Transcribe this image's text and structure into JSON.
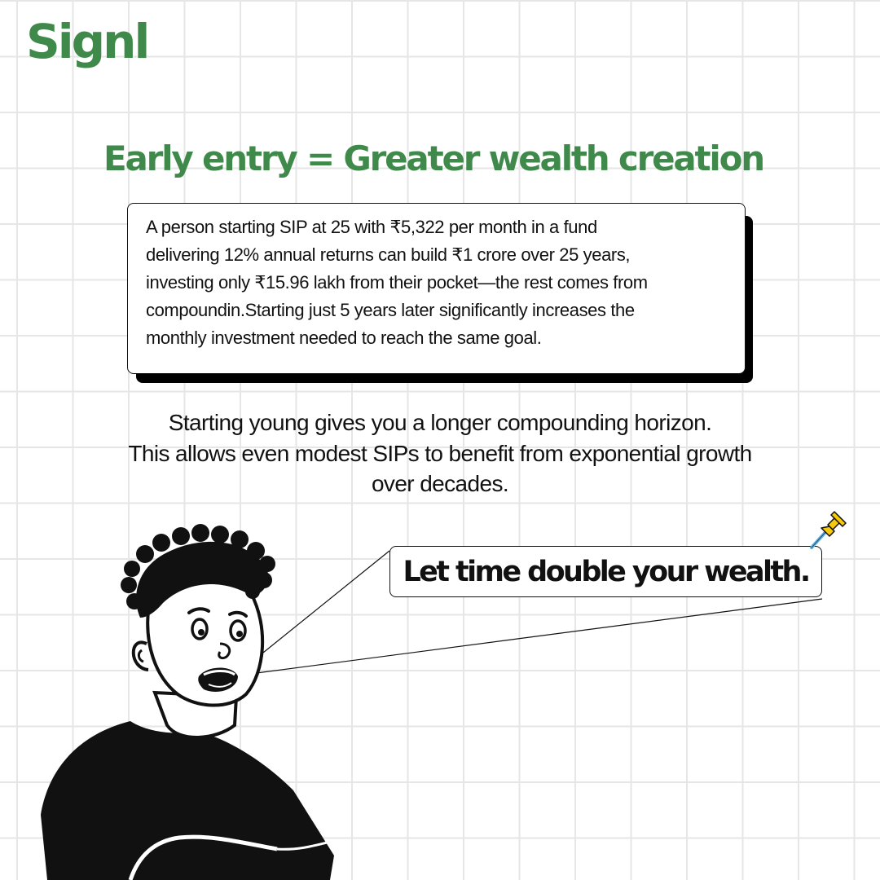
{
  "brand": {
    "logo": "Signl"
  },
  "headline": "Early entry = Greater wealth creation",
  "info_card": {
    "lines": [
      "A person starting SIP at 25 with ₹5,322 per month in a fund",
      "delivering 12% annual returns can build ₹1 crore over 25 years,",
      "investing only ₹15.96 lakh from their pocket—the rest comes from",
      "compoundin.Starting just 5 years later significantly increases the",
      "monthly investment needed to reach the same goal."
    ]
  },
  "body_text": {
    "lines": [
      "Starting young gives you a longer compounding horizon.",
      "This allows even modest SIPs to benefit from exponential growth",
      "over decades."
    ]
  },
  "speech_bubble": {
    "text": "Let time double your wealth."
  },
  "colors": {
    "brand_green": "#3f8a4a",
    "pin_yellow": "#f6c90e",
    "pin_blue": "#5bb3e6"
  },
  "icons": {
    "pin": "pushpin-icon",
    "character": "person-illustration"
  }
}
